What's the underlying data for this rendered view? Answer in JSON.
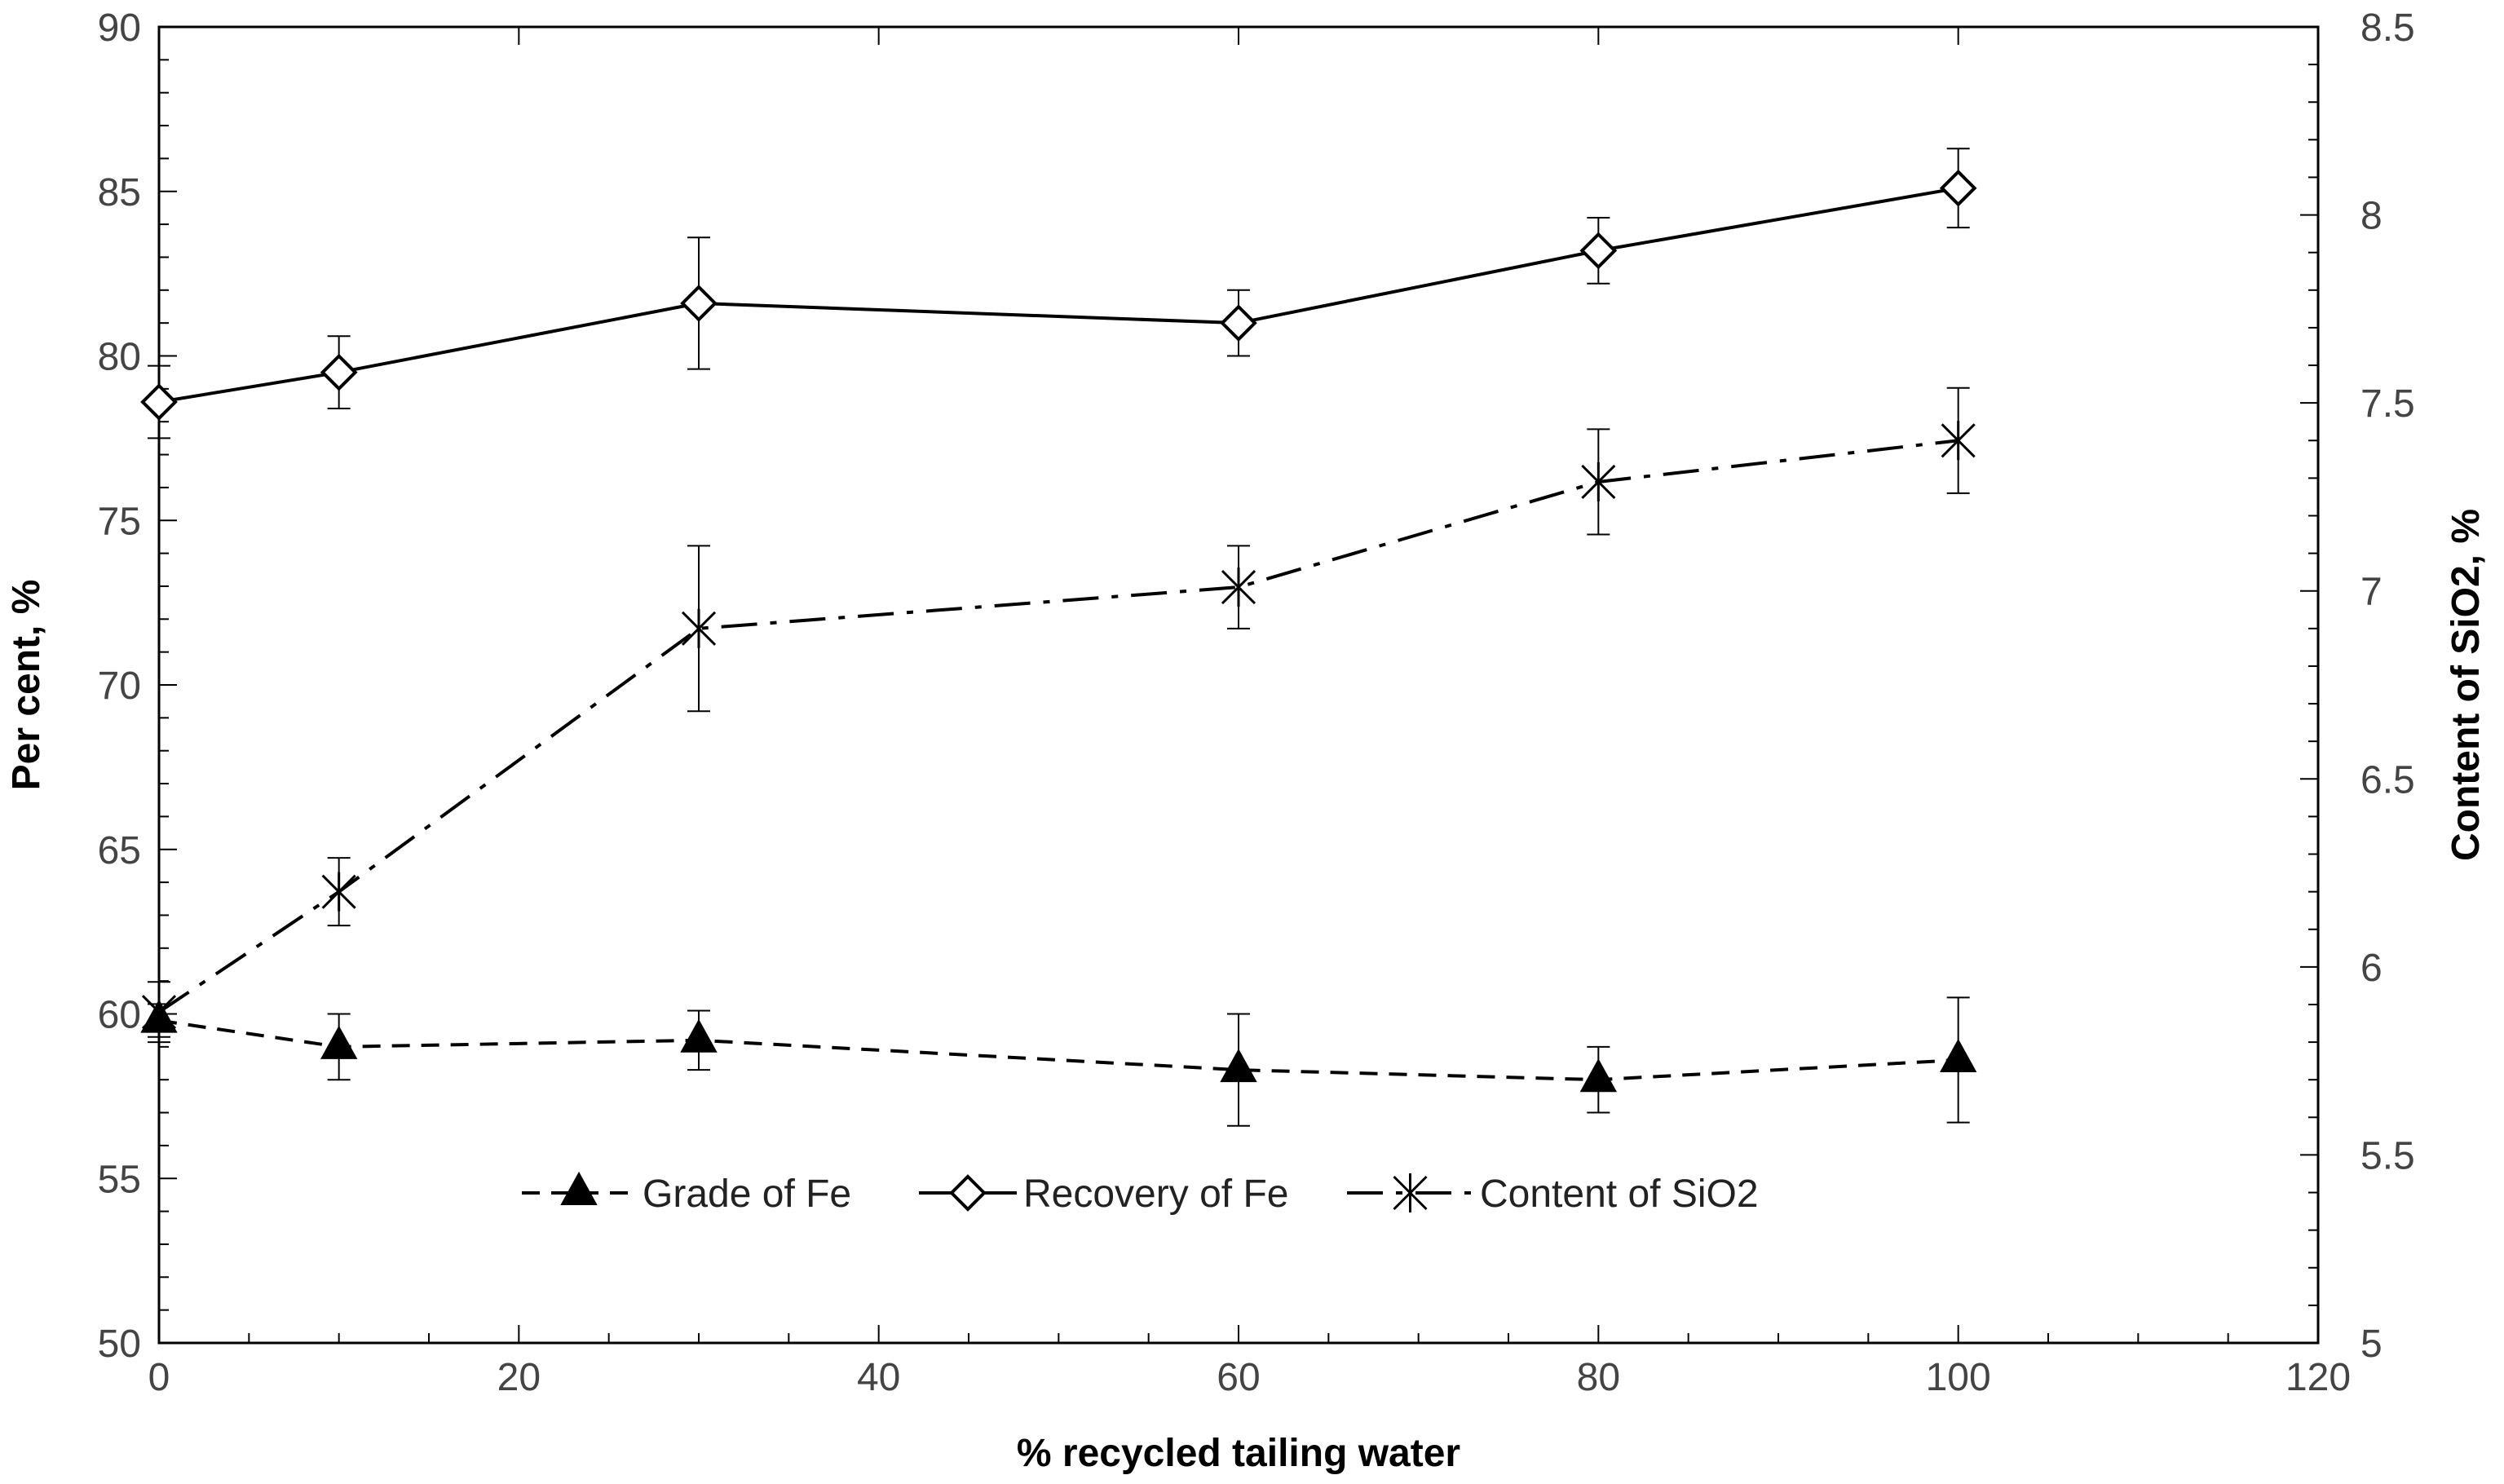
{
  "chart_data": {
    "type": "line",
    "title": "",
    "xlabel": "% recycled tailing water",
    "ylabel": "Per cent, %",
    "y2label": "Content of SiO2, %",
    "xlim": [
      0,
      120
    ],
    "ylim": [
      50,
      90
    ],
    "y2lim": [
      5,
      8.5
    ],
    "x_ticks": [
      "0",
      "20",
      "40",
      "60",
      "80",
      "100",
      "120"
    ],
    "y_ticks": [
      "50",
      "55",
      "60",
      "65",
      "70",
      "75",
      "80",
      "85",
      "90"
    ],
    "y2_ticks": [
      "5",
      "5.5",
      "6",
      "6.5",
      "7",
      "7.5",
      "8",
      "8.5"
    ],
    "x": [
      0,
      10,
      30,
      60,
      80,
      100
    ],
    "series": [
      {
        "name": "Grade of Fe",
        "axis": "left",
        "marker": "triangle",
        "line_style": "dashed",
        "values": [
          59.8,
          59.0,
          59.2,
          58.3,
          58.0,
          58.6
        ],
        "errors": [
          0.5,
          1.0,
          0.9,
          1.7,
          1.0,
          1.9
        ]
      },
      {
        "name": "Recovery of Fe",
        "axis": "left",
        "marker": "diamond",
        "line_style": "solid",
        "values": [
          78.6,
          79.5,
          81.6,
          81.0,
          83.2,
          85.1
        ],
        "errors": [
          1.1,
          1.1,
          2.0,
          1.0,
          1.0,
          1.2
        ]
      },
      {
        "name": "Content of SiO2",
        "axis": "right",
        "marker": "asterisk",
        "line_style": "dashdot",
        "values": [
          5.88,
          6.2,
          6.9,
          7.01,
          7.29,
          7.4
        ],
        "errors": [
          0.08,
          0.09,
          0.22,
          0.11,
          0.14,
          0.14
        ]
      }
    ],
    "legend": {
      "position": "bottom-center"
    }
  }
}
